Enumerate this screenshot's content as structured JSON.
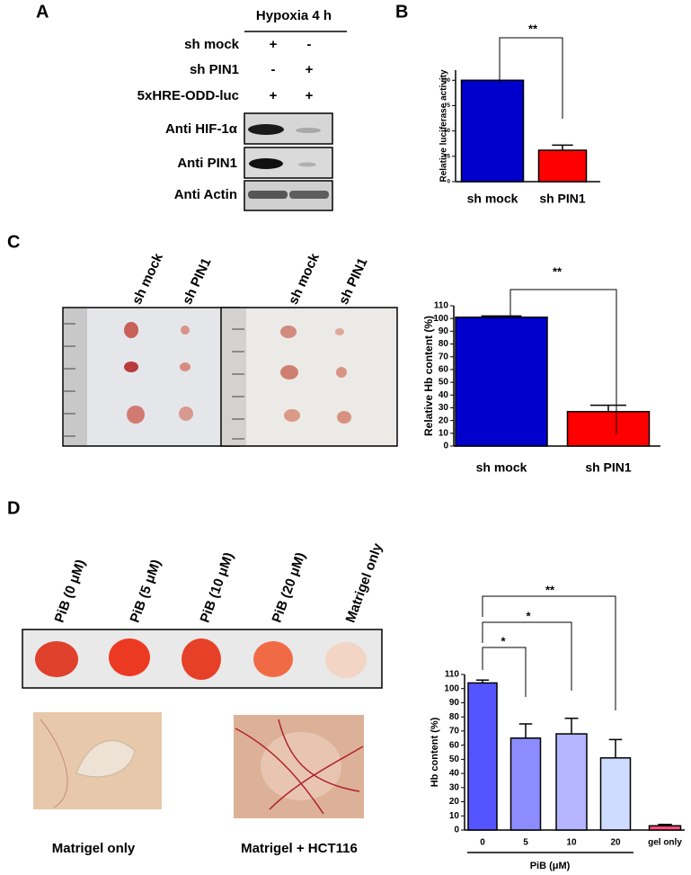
{
  "panel_labels": [
    "A",
    "B",
    "C",
    "D"
  ],
  "blot": {
    "header": "Hypoxia 4 h",
    "rows": [
      {
        "label": "sh mock",
        "marks": [
          "+",
          "-"
        ]
      },
      {
        "label": "sh PIN1",
        "marks": [
          "-",
          "+"
        ]
      },
      {
        "label": "5xHRE-ODD-luc",
        "marks": [
          "+",
          "+"
        ]
      }
    ],
    "bands": [
      "Anti HIF-1α",
      "Anti PIN1",
      "Anti Actin"
    ]
  },
  "xenograft_labels": [
    "sh mock",
    "sh PIN1",
    "sh mock",
    "sh PIN1"
  ],
  "plug_labels": [
    "PiB (0 μM)",
    "PiB (5 μM)",
    "PiB (10 μM)",
    "PiB (20 μM)",
    "Matrigel only"
  ],
  "photo_captions": [
    "Matrigel only",
    "Matrigel + HCT116"
  ],
  "chart_data": [
    {
      "type": "bar",
      "ylabel": "Relative luciferase activity",
      "categories": [
        "sh mock",
        "sh PIN1"
      ],
      "values": [
        100,
        31
      ],
      "errors": [
        0,
        5
      ],
      "colors": [
        "#0000cc",
        "#ff0000"
      ],
      "ylim": [
        0,
        110
      ],
      "yticks": [
        0,
        25,
        50,
        75,
        100
      ],
      "annotations": [
        "**"
      ]
    },
    {
      "type": "bar",
      "ylabel": "Relative Hb content (%)",
      "categories": [
        "sh mock",
        "sh PIN1"
      ],
      "values": [
        101,
        27
      ],
      "errors": [
        1,
        5
      ],
      "colors": [
        "#0000cc",
        "#ff0000"
      ],
      "ylim": [
        0,
        110
      ],
      "yticks": [
        0,
        10,
        20,
        30,
        40,
        50,
        60,
        70,
        80,
        90,
        100,
        110
      ],
      "annotations": [
        "**"
      ]
    },
    {
      "type": "bar",
      "ylabel": "Hb content (%)",
      "xlabel": "PiB (μM)",
      "categories": [
        "0",
        "5",
        "10",
        "20",
        "gel only"
      ],
      "values": [
        104,
        65,
        68,
        51,
        3
      ],
      "errors": [
        2,
        10,
        11,
        13,
        1
      ],
      "colors": [
        "#5555ff",
        "#8c8cff",
        "#b4b4ff",
        "#cddcff",
        "#ff4f7a"
      ],
      "ylim": [
        0,
        110
      ],
      "yticks": [
        0,
        10,
        20,
        30,
        40,
        50,
        60,
        70,
        80,
        90,
        100,
        110
      ],
      "annotations": [
        "*",
        "*",
        "**"
      ]
    }
  ]
}
